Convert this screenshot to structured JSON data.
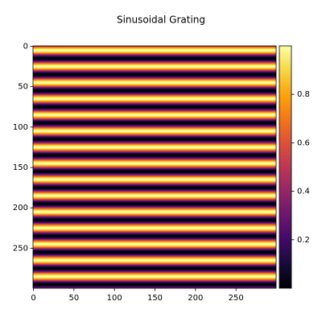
{
  "chart_data": {
    "type": "heatmap",
    "title": "Sinusoidal Grating",
    "colormap": "inferno",
    "xlim": [
      -0.5,
      299.5
    ],
    "ylim": [
      -0.5,
      299.5
    ],
    "y_inverted": true,
    "xticks": [
      0,
      50,
      100,
      150,
      200,
      250
    ],
    "yticks": [
      0,
      50,
      100,
      150,
      200,
      250
    ],
    "clim": [
      0,
      1
    ],
    "cticks": [
      0.2,
      0.4,
      0.6,
      0.8
    ],
    "values": [
      0.5,
      0.65,
      0.79,
      0.9,
      0.98,
      1,
      0.98,
      0.9,
      0.79,
      0.65,
      0.5,
      0.35,
      0.21,
      0.1,
      0.02,
      0,
      0.02,
      0.1,
      0.21,
      0.35,
      0.5,
      0.65,
      0.79,
      0.9,
      0.98,
      1,
      0.98,
      0.9,
      0.79,
      0.65,
      0.5,
      0.35,
      0.21,
      0.1,
      0.02,
      0,
      0.02,
      0.1,
      0.21,
      0.35,
      0.5,
      0.65,
      0.79,
      0.9,
      0.98,
      1,
      0.98,
      0.9,
      0.79,
      0.65,
      0.5,
      0.35,
      0.21,
      0.1,
      0.02,
      0,
      0.02,
      0.1,
      0.21,
      0.35,
      0.5,
      0.65,
      0.79,
      0.9,
      0.98,
      1,
      0.98,
      0.9,
      0.79,
      0.65,
      0.5,
      0.35,
      0.21,
      0.1,
      0.02,
      0,
      0.02,
      0.1,
      0.21,
      0.35,
      0.5,
      0.65,
      0.79,
      0.9,
      0.98,
      1,
      0.98,
      0.9,
      0.79,
      0.65,
      0.5,
      0.35,
      0.21,
      0.1,
      0.02,
      0,
      0.02,
      0.1,
      0.21,
      0.35,
      0.5,
      0.65,
      0.79,
      0.9,
      0.98,
      1,
      0.98,
      0.9,
      0.79,
      0.65,
      0.5,
      0.35,
      0.21,
      0.1,
      0.02,
      0,
      0.02,
      0.1,
      0.21,
      0.35,
      0.5,
      0.65,
      0.79,
      0.9,
      0.98,
      1,
      0.98,
      0.9,
      0.79,
      0.65,
      0.5,
      0.35,
      0.21,
      0.1,
      0.02,
      0,
      0.02,
      0.1,
      0.21,
      0.35,
      0.5,
      0.65,
      0.79,
      0.9,
      0.98,
      1,
      0.98,
      0.9,
      0.79,
      0.65,
      0.5,
      0.35,
      0.21,
      0.1,
      0.02,
      0,
      0.02,
      0.1,
      0.21,
      0.35,
      0.5,
      0.65,
      0.79,
      0.9,
      0.98,
      1,
      0.98,
      0.9,
      0.79,
      0.65,
      0.5,
      0.35,
      0.21,
      0.1,
      0.02,
      0,
      0.02,
      0.1,
      0.21,
      0.35,
      0.5,
      0.65,
      0.79,
      0.9,
      0.98,
      1,
      0.98,
      0.9,
      0.79,
      0.65,
      0.5,
      0.35,
      0.21,
      0.1,
      0.02,
      0,
      0.02,
      0.1,
      0.21,
      0.35,
      0.5,
      0.65,
      0.79,
      0.9,
      0.98,
      1,
      0.98,
      0.9,
      0.79,
      0.65,
      0.5,
      0.35,
      0.21,
      0.1,
      0.02,
      0,
      0.02,
      0.1,
      0.21,
      0.35,
      0.5,
      0.65,
      0.79,
      0.9,
      0.98,
      1,
      0.98,
      0.9,
      0.79,
      0.65,
      0.5,
      0.35,
      0.21,
      0.1,
      0.02,
      0,
      0.02,
      0.1,
      0.21,
      0.35,
      0.5,
      0.65,
      0.79,
      0.9,
      0.98,
      1,
      0.98,
      0.9,
      0.79,
      0.65,
      0.5,
      0.35,
      0.21,
      0.1,
      0.02,
      0,
      0.02,
      0.1,
      0.21,
      0.35,
      0.5,
      0.65,
      0.79,
      0.9,
      0.98,
      1,
      0.98,
      0.9,
      0.79,
      0.65,
      0.5,
      0.35,
      0.21,
      0.1,
      0.02,
      0,
      0.02,
      0.1,
      0.21,
      0.35,
      0.5,
      0.65,
      0.79,
      0.9,
      0.98,
      1,
      0.98,
      0.9,
      0.79,
      0.65,
      0.5,
      0.35,
      0.21,
      0.1,
      0.02,
      0,
      0.02,
      0.1,
      0.21,
      0.35
    ]
  }
}
